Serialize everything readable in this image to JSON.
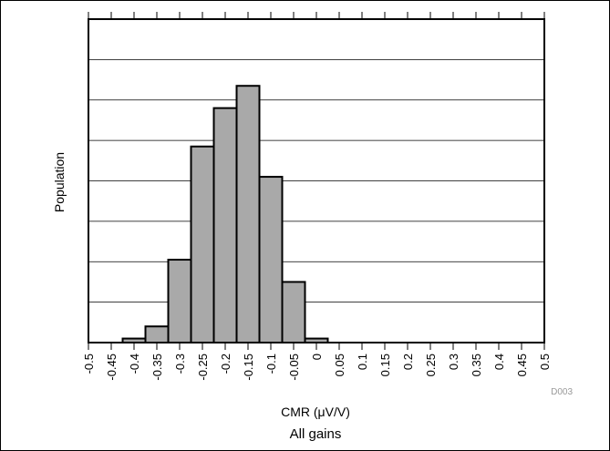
{
  "chart_data": {
    "type": "bar",
    "title": "",
    "xlabel": "CMR (μV/V)",
    "subtitle": "All gains",
    "ylabel": "Population",
    "figure_code": "D003",
    "x_ticks": [
      "-0.5",
      "-0.45",
      "-0.4",
      "-0.35",
      "-0.3",
      "-0.25",
      "-0.2",
      "-0.15",
      "-0.1",
      "-0.05",
      "0",
      "0.05",
      "0.1",
      "0.15",
      "0.2",
      "0.25",
      "0.3",
      "0.35",
      "0.4",
      "0.45",
      "0.5"
    ],
    "xlim": [
      -0.5,
      0.5
    ],
    "ylim": [
      0,
      8
    ],
    "grid": true,
    "bin_width": 0.05,
    "bars": [
      {
        "x": -0.4,
        "value": 0.1
      },
      {
        "x": -0.35,
        "value": 0.4
      },
      {
        "x": -0.3,
        "value": 2.05
      },
      {
        "x": -0.25,
        "value": 4.85
      },
      {
        "x": -0.2,
        "value": 5.8
      },
      {
        "x": -0.15,
        "value": 6.35
      },
      {
        "x": -0.1,
        "value": 4.1
      },
      {
        "x": -0.05,
        "value": 1.5
      },
      {
        "x": 0,
        "value": 0.1
      }
    ],
    "colors": {
      "bar_fill": "#a9a9a9",
      "bar_stroke": "#000000",
      "grid": "#000000"
    }
  }
}
